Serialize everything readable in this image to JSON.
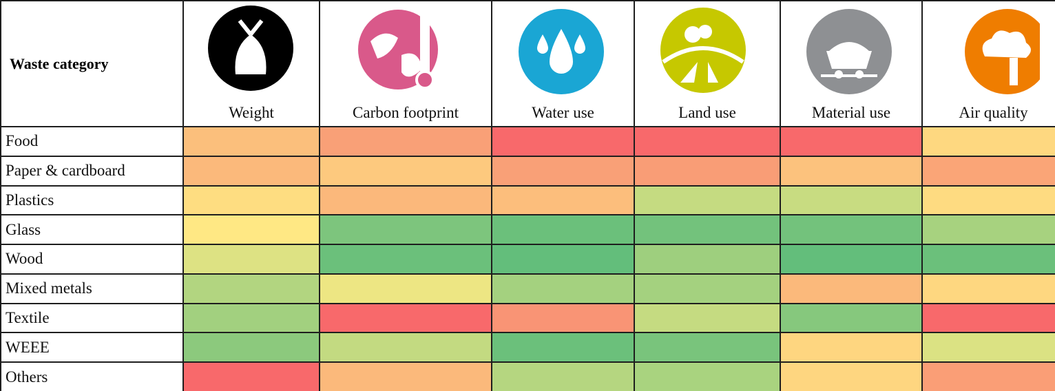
{
  "table": {
    "header": [
      "Waste category",
      "Weight",
      "Carbon footprint",
      "Water use",
      "Land use",
      "Material use",
      "Air quality"
    ],
    "rows": [
      {
        "label": "Food",
        "colors": [
          "#fbbf7c",
          "#f9a077",
          "#f8696b",
          "#f8696b",
          "#f8696b",
          "#fed880"
        ]
      },
      {
        "label": "Paper & cardboard",
        "colors": [
          "#fbb97b",
          "#fdc97e",
          "#f9a077",
          "#f99d76",
          "#fcc27d",
          "#faa577"
        ]
      },
      {
        "label": "Plastics",
        "colors": [
          "#fedd81",
          "#fbb87b",
          "#fcbe7c",
          "#c5db81",
          "#c8dc81",
          "#fedb81"
        ]
      },
      {
        "label": "Glass",
        "colors": [
          "#ffe884",
          "#7dc57d",
          "#6bc07b",
          "#73c27c",
          "#73c27c",
          "#a7d27f"
        ]
      },
      {
        "label": "Wood",
        "colors": [
          "#dde283",
          "#6bc07b",
          "#63be7b",
          "#9ecf7e",
          "#63be7b",
          "#6bc07b"
        ]
      },
      {
        "label": "Mixed metals",
        "colors": [
          "#b2d580",
          "#ede683",
          "#a4d17f",
          "#a4d17f",
          "#fbb97b",
          "#fed780"
        ]
      },
      {
        "label": "Textile",
        "colors": [
          "#a2d07f",
          "#f8696b",
          "#f99475",
          "#c5db81",
          "#86c87d",
          "#f8696b"
        ]
      },
      {
        "label": "WEEE",
        "colors": [
          "#8cc97d",
          "#c3da81",
          "#6bc07b",
          "#79c47c",
          "#fed680",
          "#dbe283"
        ]
      },
      {
        "label": "Others",
        "colors": [
          "#f8696b",
          "#fbb97b",
          "#b5d680",
          "#a9d37f",
          "#fed680",
          "#fa9e76"
        ]
      }
    ]
  }
}
